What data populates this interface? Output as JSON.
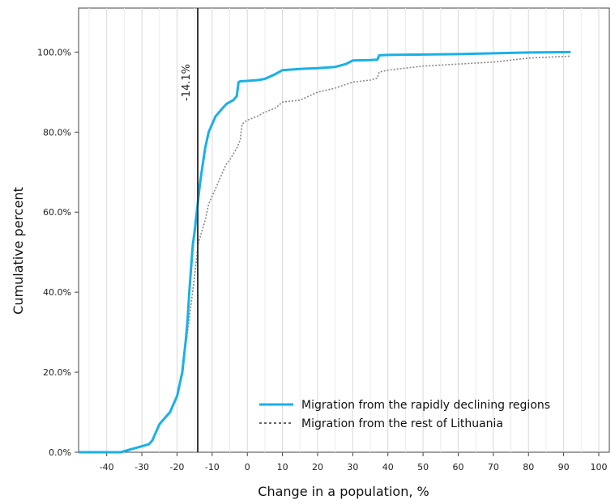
{
  "chart_data": {
    "type": "line",
    "title": "",
    "xlabel": "Change in a population, %",
    "ylabel": "Cumulative percent",
    "xlim": [
      -48,
      103
    ],
    "ylim": [
      0,
      111
    ],
    "x_ticks": [
      -40,
      -30,
      -20,
      -10,
      0,
      10,
      20,
      30,
      40,
      50,
      60,
      70,
      80,
      90,
      100
    ],
    "y_ticks": [
      0,
      20,
      40,
      60,
      80,
      100
    ],
    "x_tick_labels": [
      "-40",
      "-30",
      "-20",
      "-10",
      "0",
      "10",
      "20",
      "30",
      "40",
      "50",
      "60",
      "70",
      "80",
      "90",
      "100"
    ],
    "y_tick_labels": [
      "0.0%",
      "20.0%",
      "40.0%",
      "60.0%",
      "80.0%",
      "100.0%"
    ],
    "grid": "vertical",
    "legend_position": "bottom-right",
    "reference_line": {
      "x": -14.1,
      "label": "-14.1%"
    },
    "series": [
      {
        "name": "Migration from the rapidly declining regions",
        "color": "#1ab0e8",
        "style": "solid",
        "x": [
          -48,
          -36,
          -34,
          -32,
          -30,
          -28,
          -27,
          -26,
          -25,
          -24,
          -22,
          -21,
          -20,
          -19,
          -18.5,
          -18,
          -17.5,
          -17,
          -16.5,
          -16,
          -15.5,
          -15,
          -14.5,
          -14,
          -13.5,
          -13,
          -12.5,
          -12,
          -11,
          -10,
          -9,
          -8,
          -7,
          -6,
          -5,
          -4,
          -3,
          -2.5,
          -2,
          0,
          3,
          5,
          8,
          10,
          15,
          20,
          25,
          28,
          30,
          35,
          37,
          37.5,
          40,
          50,
          60,
          70,
          80,
          92
        ],
        "y": [
          0,
          0,
          0.5,
          1,
          1.5,
          2,
          3,
          5,
          7,
          8,
          10,
          12,
          14,
          18,
          20,
          24,
          28,
          33,
          40,
          46,
          52,
          55,
          59,
          63,
          67,
          70,
          73,
          76,
          80,
          82,
          84,
          85,
          86,
          87,
          87.5,
          88,
          89,
          92.5,
          92.7,
          92.8,
          93,
          93.3,
          94.5,
          95.5,
          95.8,
          96,
          96.3,
          97,
          97.9,
          98,
          98.1,
          99.2,
          99.3,
          99.4,
          99.5,
          99.7,
          99.9,
          100
        ]
      },
      {
        "name": "Migration from the rest of Lithuania",
        "color": "#888888",
        "style": "dotted",
        "x": [
          -48,
          -36,
          -34,
          -32,
          -30,
          -28,
          -27,
          -26,
          -25,
          -24,
          -22,
          -21,
          -20,
          -19,
          -18,
          -17,
          -16,
          -15,
          -14,
          -13,
          -12,
          -11,
          -10,
          -9,
          -8,
          -7,
          -6,
          -5,
          -4,
          -3,
          -2,
          -1.5,
          0,
          3,
          5,
          8,
          10,
          15,
          20,
          25,
          30,
          35,
          37,
          37.5,
          40,
          50,
          60,
          70,
          80,
          92
        ],
        "y": [
          0,
          0,
          0.5,
          1,
          1.5,
          2,
          3,
          5,
          7,
          8,
          10,
          12,
          14,
          18,
          24,
          30,
          37,
          44,
          52,
          55,
          58,
          62,
          64,
          66,
          68,
          70,
          72,
          73,
          74.5,
          76,
          78,
          82,
          83,
          84,
          85,
          86,
          87.5,
          88,
          90,
          91,
          92.5,
          93,
          93.5,
          95,
          95.5,
          96.5,
          97,
          97.5,
          98.5,
          99
        ]
      }
    ]
  }
}
